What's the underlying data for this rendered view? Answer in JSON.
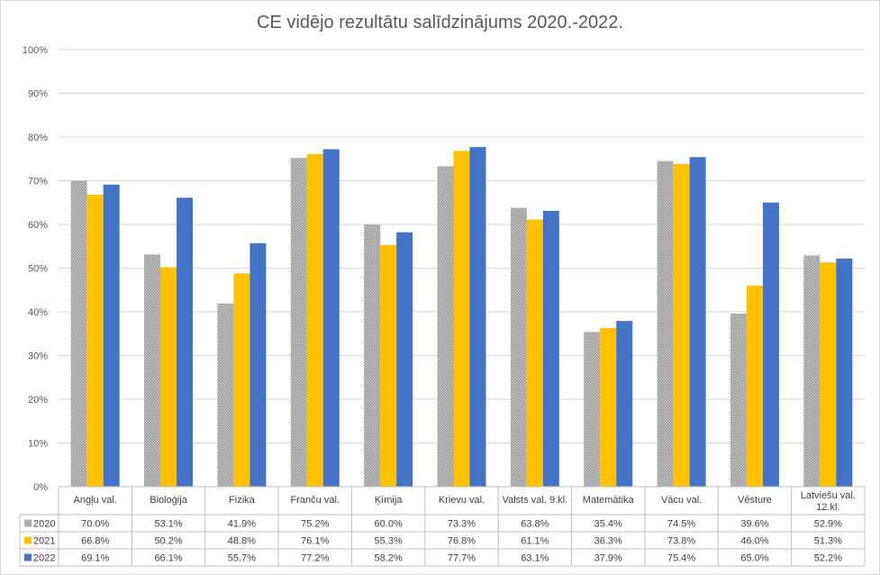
{
  "chart_data": {
    "type": "bar",
    "title": "CE vidējo rezultātu salīdzinājums 2020.-2022.",
    "categories": [
      [
        "Angļu val."
      ],
      [
        "Bioloģija"
      ],
      [
        "Fizika"
      ],
      [
        "Franču val."
      ],
      [
        "Ķīmija"
      ],
      [
        "Krievu val."
      ],
      [
        "Valsts val. 9.kl."
      ],
      [
        "Matemātika"
      ],
      [
        "Vācu val."
      ],
      [
        "Vēsture"
      ],
      [
        "Latviešu val.",
        "12.kl."
      ]
    ],
    "ylim": [
      0,
      100
    ],
    "yticks": [
      "0%",
      "10%",
      "20%",
      "30%",
      "40%",
      "50%",
      "60%",
      "70%",
      "80%",
      "90%",
      "100%"
    ],
    "grid": true,
    "legend": "table-below",
    "series": [
      {
        "name": "2020",
        "color": "#a6a6a6",
        "pattern": "hatched",
        "values": [
          70.0,
          53.1,
          41.9,
          75.2,
          60.0,
          73.3,
          63.8,
          35.4,
          74.5,
          39.6,
          52.9
        ],
        "labels": [
          "70.0%",
          "53.1%",
          "41.9%",
          "75.2%",
          "60.0%",
          "73.3%",
          "63.8%",
          "35.4%",
          "74.5%",
          "39.6%",
          "52.9%"
        ]
      },
      {
        "name": "2021",
        "color": "#ffc000",
        "values": [
          66.8,
          50.2,
          48.8,
          76.1,
          55.3,
          76.8,
          61.1,
          36.3,
          73.8,
          46.0,
          51.3
        ],
        "labels": [
          "66.8%",
          "50.2%",
          "48.8%",
          "76.1%",
          "55.3%",
          "76.8%",
          "61.1%",
          "36.3%",
          "73.8%",
          "46.0%",
          "51.3%"
        ]
      },
      {
        "name": "2022",
        "color": "#4472c4",
        "values": [
          69.1,
          66.1,
          55.7,
          77.2,
          58.2,
          77.7,
          63.1,
          37.9,
          75.4,
          65.0,
          52.2
        ],
        "labels": [
          "69.1%",
          "66.1%",
          "55.7%",
          "77.2%",
          "58.2%",
          "77.7%",
          "63.1%",
          "37.9%",
          "75.4%",
          "65.0%",
          "52.2%"
        ]
      }
    ]
  }
}
